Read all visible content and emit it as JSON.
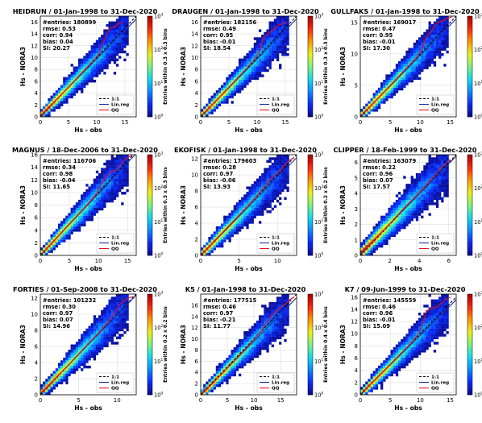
{
  "colors": {
    "one_to_one": "#000000",
    "lin_reg": "#1f2f9a",
    "qq": "#e8121e",
    "colormap": [
      "#0a0a8c",
      "#0a2dff",
      "#0a8cff",
      "#13d9f0",
      "#7df57d",
      "#e8f21a",
      "#ff9a00",
      "#ff2a0a",
      "#b00000"
    ]
  },
  "legend": [
    "1:1",
    "Lin.reg",
    "QQ"
  ],
  "chart_data": [
    {
      "type": "heatmap",
      "title": "HEIDRUN / 01-Jan-1998 to 31-Dec-2020",
      "xlabel": "Hs - obs",
      "ylabel": "Hs - NORA3",
      "xlim": [
        0,
        17
      ],
      "ylim": [
        0,
        17
      ],
      "xticks": [
        0,
        5,
        10,
        15
      ],
      "yticks": [
        0,
        2,
        4,
        6,
        8,
        10,
        12,
        14,
        16
      ],
      "stats": {
        "entries": "180899",
        "rmse": "0.53",
        "corr": "0.94",
        "bias": "0.04",
        "si": "20.27"
      },
      "colorbar": {
        "label": "Entries within 0.3 x 0.3 bins",
        "ticks": [
          "0",
          "1",
          "2",
          "3"
        ],
        "log_base": 10
      },
      "lin_reg": {
        "slope": 0.96,
        "intercept": 0.18
      },
      "qq": [
        [
          0.4,
          0.5
        ],
        [
          2,
          2.05
        ],
        [
          4,
          4.05
        ],
        [
          6,
          6.05
        ],
        [
          8,
          8.1
        ],
        [
          9.5,
          9.6
        ],
        [
          10.5,
          10.8
        ],
        [
          11.2,
          12.6
        ],
        [
          11.8,
          14.2
        ],
        [
          12.5,
          15.0
        ],
        [
          13.2,
          15.2
        ],
        [
          13.8,
          15.7
        ],
        [
          14.6,
          15.9
        ]
      ]
    },
    {
      "type": "heatmap",
      "title": "DRAUGEN / 01-Jan-1998 to 31-Dec-2020",
      "xlabel": "Hs - obs",
      "ylabel": "Hs - NORA3",
      "xlim": [
        0,
        17
      ],
      "ylim": [
        0,
        17
      ],
      "xticks": [
        0,
        5,
        10,
        15
      ],
      "yticks": [
        0,
        2,
        4,
        6,
        8,
        10,
        12,
        14,
        16
      ],
      "stats": {
        "entries": "182156",
        "rmse": "0.49",
        "corr": "0.95",
        "bias": "-0.01",
        "si": "18.54"
      },
      "colorbar": {
        "label": "Entries within 0.3 x 0.3 bins",
        "ticks": [
          "0",
          "1",
          "2",
          "3"
        ],
        "log_base": 10
      },
      "lin_reg": {
        "slope": 0.97,
        "intercept": 0.05
      },
      "qq": [
        [
          0.4,
          0.45
        ],
        [
          2,
          2
        ],
        [
          4,
          4
        ],
        [
          6,
          6
        ],
        [
          8,
          8.05
        ],
        [
          9.5,
          9.7
        ],
        [
          10.5,
          11.2
        ],
        [
          11.2,
          13.5
        ],
        [
          12.2,
          14.2
        ],
        [
          13.0,
          14.8
        ],
        [
          13.8,
          15.5
        ],
        [
          14.5,
          15.7
        ],
        [
          15.2,
          16.0
        ]
      ]
    },
    {
      "type": "heatmap",
      "title": "GULLFAKS / 01-Jan-1998 to 31-Dec-2020",
      "xlabel": "Hs - obs",
      "ylabel": "Hs - NORA3",
      "xlim": [
        0,
        16
      ],
      "ylim": [
        0,
        16
      ],
      "xticks": [
        0,
        5,
        10,
        15
      ],
      "yticks": [
        0,
        5,
        10,
        15
      ],
      "stats": {
        "entries": "169017",
        "rmse": "0.47",
        "corr": "0.95",
        "bias": "-0.01",
        "si": "17.30"
      },
      "colorbar": {
        "label": "Entries within 0.3 x 0.3 bins",
        "ticks": [
          "0",
          "1",
          "2",
          "3"
        ],
        "log_base": 10
      },
      "lin_reg": {
        "slope": 0.97,
        "intercept": 0.05
      },
      "qq": [
        [
          0.4,
          0.45
        ],
        [
          2,
          2
        ],
        [
          4,
          4
        ],
        [
          6,
          6
        ],
        [
          8,
          8.05
        ],
        [
          9.5,
          9.6
        ],
        [
          10.3,
          10.8
        ],
        [
          11,
          12.7
        ],
        [
          12,
          13.8
        ],
        [
          12.8,
          15.0
        ],
        [
          13.6,
          15.2
        ],
        [
          14.5,
          15.6
        ],
        [
          15.3,
          15.9
        ]
      ]
    },
    {
      "type": "heatmap",
      "title": "MAGNUS / 18-Dec-2006 to 31-Dec-2020",
      "xlabel": "Hs - obs",
      "ylabel": "Hs - NORA3",
      "xlim": [
        0,
        16.5
      ],
      "ylim": [
        0,
        16
      ],
      "xticks": [
        0,
        5,
        10,
        15
      ],
      "yticks": [
        0,
        2,
        4,
        6,
        8,
        10,
        12,
        14,
        16
      ],
      "stats": {
        "entries": "116706",
        "rmse": "0.34",
        "corr": "0.98",
        "bias": "-0.04",
        "si": "11.65"
      },
      "colorbar": {
        "label": "Entries within 0.3 x 0.3 bins",
        "ticks": [
          "0",
          "1",
          "2",
          "3"
        ],
        "log_base": 10
      },
      "lin_reg": {
        "slope": 0.98,
        "intercept": 0.02
      },
      "qq": [
        [
          0.4,
          0.4
        ],
        [
          2,
          2
        ],
        [
          4,
          4
        ],
        [
          6,
          6
        ],
        [
          8,
          8
        ],
        [
          9.5,
          9.6
        ],
        [
          10.5,
          11.2
        ],
        [
          11.2,
          12.4
        ],
        [
          12,
          13.2
        ],
        [
          13,
          13.6
        ],
        [
          13.8,
          14.4
        ],
        [
          14.5,
          15.2
        ],
        [
          15.2,
          15.6
        ],
        [
          15.8,
          15.9
        ]
      ]
    },
    {
      "type": "heatmap",
      "title": "EKOFISK / 01-Jan-1998 to 31-Dec-2020",
      "xlabel": "Hs - obs",
      "ylabel": "Hs - NORA3",
      "xlim": [
        0,
        12.5
      ],
      "ylim": [
        0,
        12.5
      ],
      "xticks": [
        0,
        5,
        10
      ],
      "yticks": [
        0,
        2,
        4,
        6,
        8,
        10,
        12
      ],
      "stats": {
        "entries": "179603",
        "rmse": "0.28",
        "corr": "0.97",
        "bias": "-0.06",
        "si": "13.93"
      },
      "colorbar": {
        "label": "Entries within 0.2 x 0.2 bins",
        "ticks": [
          "0",
          "1",
          "2",
          "3"
        ],
        "log_base": 10
      },
      "lin_reg": {
        "slope": 0.97,
        "intercept": 0.0
      },
      "qq": [
        [
          0.3,
          0.3
        ],
        [
          2,
          2
        ],
        [
          4,
          4
        ],
        [
          6,
          6
        ],
        [
          7.5,
          7.6
        ],
        [
          8.5,
          8.8
        ],
        [
          9.2,
          9.6
        ],
        [
          9.8,
          10.1
        ],
        [
          10.4,
          10.5
        ],
        [
          11.0,
          11.3
        ],
        [
          11.6,
          11.8
        ],
        [
          12.1,
          12.1
        ]
      ]
    },
    {
      "type": "heatmap",
      "title": "CLIPPER / 18-Feb-1999 to 31-Dec-2020",
      "xlabel": "Hs - obs",
      "ylabel": "Hs - NORA3",
      "xlim": [
        0,
        6.5
      ],
      "ylim": [
        0,
        6.5
      ],
      "xticks": [
        0,
        2,
        4,
        6
      ],
      "yticks": [
        0,
        1,
        2,
        3,
        4,
        5,
        6
      ],
      "stats": {
        "entries": "163079",
        "rmse": "0.22",
        "corr": "0.96",
        "bias": "0.07",
        "si": "17.57"
      },
      "colorbar": {
        "label": "Entries within 0.1 x 0.1 bins",
        "ticks": [
          "0",
          "1",
          "2",
          "3"
        ],
        "log_base": 10
      },
      "lin_reg": {
        "slope": 0.97,
        "intercept": 0.1
      },
      "qq": [
        [
          0.2,
          0.25
        ],
        [
          1,
          1.05
        ],
        [
          2,
          2.05
        ],
        [
          3,
          3.1
        ],
        [
          4,
          4.05
        ],
        [
          4.5,
          4.6
        ],
        [
          5,
          5.1
        ],
        [
          5.4,
          5.6
        ],
        [
          5.8,
          5.95
        ],
        [
          6.1,
          6.2
        ]
      ]
    },
    {
      "type": "heatmap",
      "title": "FORTIES / 01-Sep-2008 to 31-Dec-2020",
      "xlabel": "Hs - obs",
      "ylabel": "Hs - NORA3",
      "xlim": [
        0,
        12.5
      ],
      "ylim": [
        0,
        12.5
      ],
      "xticks": [
        0,
        5,
        10
      ],
      "yticks": [
        0,
        2,
        4,
        6,
        8,
        10,
        12
      ],
      "stats": {
        "entries": "101232",
        "rmse": "0.30",
        "corr": "0.97",
        "bias": "0.07",
        "si": "14.96"
      },
      "colorbar": {
        "label": "Entries within 0.2 x 0.2 bins",
        "ticks": [
          "0",
          "1",
          "2",
          "3"
        ],
        "log_base": 10
      },
      "lin_reg": {
        "slope": 0.98,
        "intercept": 0.12
      },
      "qq": [
        [
          0.3,
          0.35
        ],
        [
          2,
          2.05
        ],
        [
          4,
          4.05
        ],
        [
          6,
          6.1
        ],
        [
          8,
          8.1
        ],
        [
          9,
          9.3
        ],
        [
          9.7,
          10.2
        ],
        [
          10.3,
          11.2
        ],
        [
          10.9,
          11.7
        ],
        [
          11.5,
          12.0
        ],
        [
          12.1,
          12.2
        ]
      ]
    },
    {
      "type": "heatmap",
      "title": "K5 / 01-Jan-1998 to 31-Dec-2020",
      "xlabel": "Hs - obs",
      "ylabel": "Hs - NORA3",
      "xlim": [
        0,
        18
      ],
      "ylim": [
        0,
        18
      ],
      "xticks": [
        0,
        5,
        10,
        15
      ],
      "yticks": [
        0,
        2,
        4,
        6,
        8,
        10,
        12,
        14,
        16
      ],
      "stats": {
        "entries": "177515",
        "rmse": "0.46",
        "corr": "0.97",
        "bias": "-0.21",
        "si": "11.77"
      },
      "colorbar": {
        "label": "Entries within 0.4 x 0.4 bins",
        "ticks": [
          "0",
          "1",
          "2",
          "3"
        ],
        "log_base": 10
      },
      "lin_reg": {
        "slope": 0.97,
        "intercept": -0.1
      },
      "qq": [
        [
          0.4,
          0.3
        ],
        [
          2,
          1.8
        ],
        [
          4,
          3.8
        ],
        [
          6,
          5.8
        ],
        [
          8,
          7.8
        ],
        [
          10,
          9.9
        ],
        [
          11.5,
          11.6
        ],
        [
          12.5,
          13.2
        ],
        [
          13.3,
          14.2
        ],
        [
          14.2,
          15.0
        ],
        [
          15,
          15.6
        ],
        [
          16,
          16.3
        ],
        [
          17,
          17.2
        ],
        [
          17.6,
          17.5
        ]
      ]
    },
    {
      "type": "heatmap",
      "title": "K7 / 09-Jun-1999 to 31-Dec-2020",
      "xlabel": "Hs - obs",
      "ylabel": "Hs - NORA3",
      "xlim": [
        0,
        16
      ],
      "ylim": [
        0,
        16.5
      ],
      "xticks": [
        0,
        5,
        10,
        15
      ],
      "yticks": [
        0,
        2,
        4,
        6,
        8,
        10,
        12,
        14,
        16
      ],
      "stats": {
        "entries": "145559",
        "rmse": "0.46",
        "corr": "0.96",
        "bias": "-0.01",
        "si": "15.09"
      },
      "colorbar": {
        "label": "Entries within 0.3 x 0.3 bins",
        "ticks": [
          "0",
          "1",
          "2",
          "3"
        ],
        "log_base": 10
      },
      "lin_reg": {
        "slope": 0.97,
        "intercept": 0.05
      },
      "qq": [
        [
          0.4,
          0.4
        ],
        [
          2,
          2
        ],
        [
          4,
          4
        ],
        [
          6,
          6
        ],
        [
          8,
          8
        ],
        [
          9.5,
          9.7
        ],
        [
          10.3,
          11.2
        ],
        [
          11,
          13.6
        ],
        [
          11.8,
          14.2
        ],
        [
          12.8,
          14.4
        ],
        [
          13.5,
          15.0
        ],
        [
          14.2,
          15.6
        ],
        [
          15,
          16.0
        ]
      ]
    }
  ]
}
